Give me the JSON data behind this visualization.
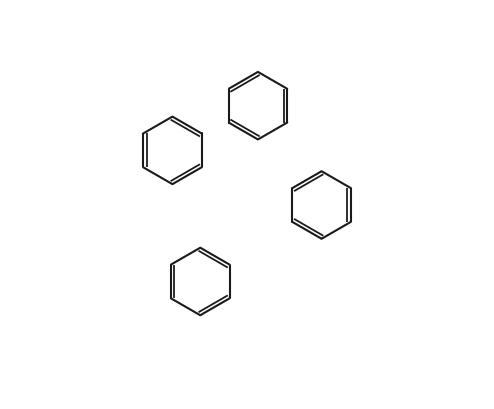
{
  "title": "",
  "bg_color": "#ffffff",
  "bond_color": "#1a1a1a",
  "B_color": "#c8a000",
  "O_color": "#ff2200",
  "C_color": "#1a1a1a",
  "text_color": "#1a1a1a",
  "figsize": [
    4.94,
    4.09
  ],
  "dpi": 100
}
